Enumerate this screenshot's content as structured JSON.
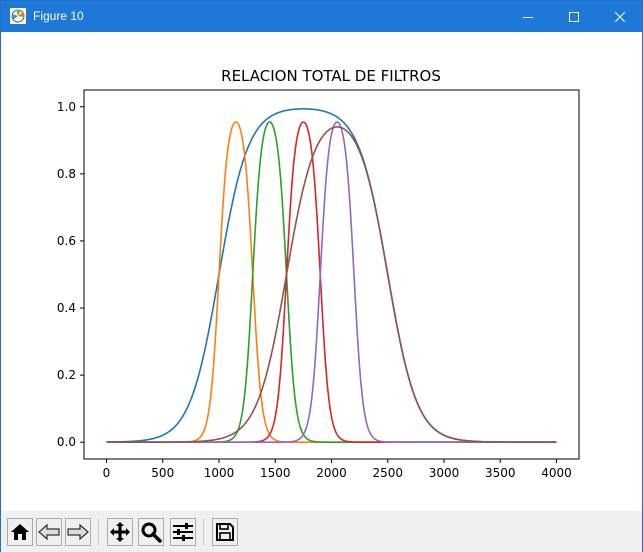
{
  "window": {
    "title": "Figure 10",
    "controls": [
      "minimize-icon",
      "maximize-icon",
      "close-icon"
    ]
  },
  "toolbar": {
    "buttons": [
      {
        "name": "home-button",
        "icon": "home-icon"
      },
      {
        "name": "back-button",
        "icon": "arrow-left-icon"
      },
      {
        "name": "forward-button",
        "icon": "arrow-right-icon"
      },
      {
        "name": "pan-button",
        "icon": "move-icon"
      },
      {
        "name": "zoom-button",
        "icon": "magnifier-icon"
      },
      {
        "name": "configure-subplots-button",
        "icon": "sliders-icon"
      },
      {
        "name": "save-button",
        "icon": "floppy-disk-icon"
      }
    ]
  },
  "chart_data": {
    "type": "line",
    "title": "RELACION TOTAL DE FILTROS",
    "xlabel": "",
    "ylabel": "",
    "xlim": [
      -200,
      4200
    ],
    "ylim": [
      -0.05,
      1.05
    ],
    "xticks": [
      0,
      500,
      1000,
      1500,
      2000,
      2500,
      3000,
      3500,
      4000
    ],
    "xtick_labels": [
      "0",
      "500",
      "1000",
      "1500",
      "2000",
      "2500",
      "3000",
      "3500",
      "4000"
    ],
    "yticks": [
      0.0,
      0.2,
      0.4,
      0.6,
      0.8,
      1.0
    ],
    "ytick_labels": [
      "0.0",
      "0.2",
      "0.4",
      "0.6",
      "0.8",
      "1.0"
    ],
    "grid": false,
    "legend": "none",
    "x_range": [
      0,
      4000
    ],
    "series": [
      {
        "color": "#1f77b4",
        "low_cut": 1000,
        "high_cut": 2500,
        "low_slope": 130,
        "high_slope": 130
      },
      {
        "color": "#ff7f0e",
        "low_cut": 1000,
        "high_cut": 1300,
        "low_slope": 40,
        "high_slope": 40
      },
      {
        "color": "#2ca02c",
        "low_cut": 1300,
        "high_cut": 1600,
        "low_slope": 40,
        "high_slope": 40
      },
      {
        "color": "#d62728",
        "low_cut": 1600,
        "high_cut": 1900,
        "low_slope": 40,
        "high_slope": 40
      },
      {
        "color": "#9467bd",
        "low_cut": 1900,
        "high_cut": 2200,
        "low_slope": 40,
        "high_slope": 40
      },
      {
        "color": "#8c564b",
        "low_cut": 1600,
        "high_cut": 2500,
        "low_slope": 130,
        "high_slope": 130
      }
    ]
  }
}
